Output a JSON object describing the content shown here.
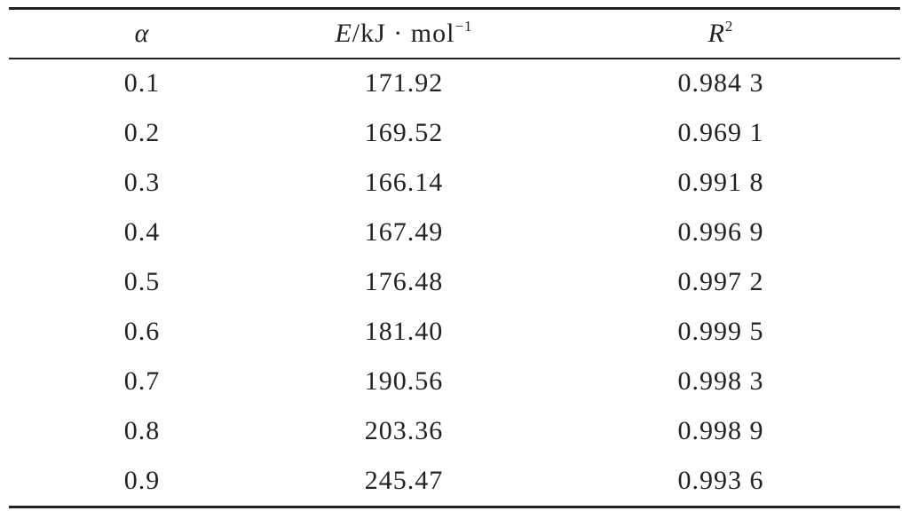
{
  "table": {
    "header": [
      {
        "main": "α"
      },
      {
        "main": "E",
        "rest": "/kJ · mol",
        "sup": "−1"
      },
      {
        "main": "R",
        "sup": "2"
      }
    ],
    "rows": [
      [
        "0.1",
        "171.92",
        "0.984 3"
      ],
      [
        "0.2",
        "169.52",
        "0.969 1"
      ],
      [
        "0.3",
        "166.14",
        "0.991 8"
      ],
      [
        "0.4",
        "167.49",
        "0.996 9"
      ],
      [
        "0.5",
        "176.48",
        "0.997 2"
      ],
      [
        "0.6",
        "181.40",
        "0.999 5"
      ],
      [
        "0.7",
        "190.56",
        "0.998 3"
      ],
      [
        "0.8",
        "203.36",
        "0.998 9"
      ],
      [
        "0.9",
        "245.47",
        "0.993 6"
      ]
    ]
  }
}
